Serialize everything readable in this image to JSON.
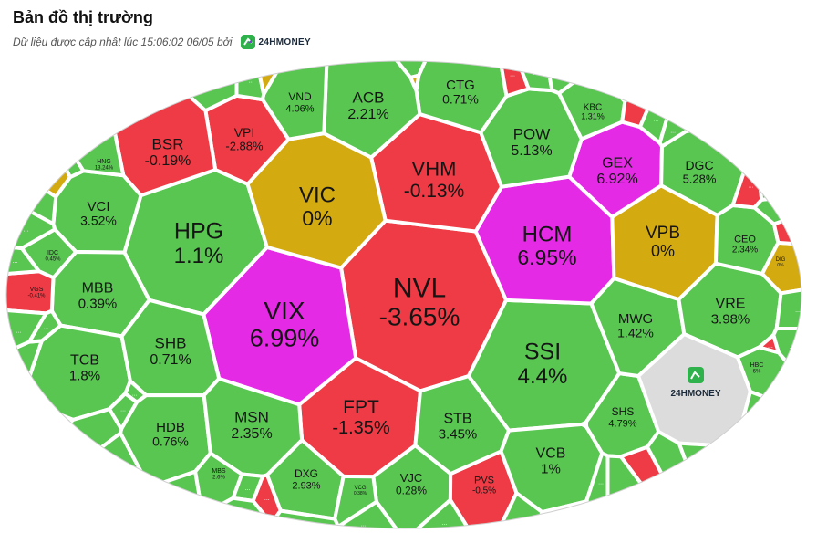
{
  "header": {
    "title": "Bản đồ thị trường",
    "update_text": "Dữ liệu được cập nhật lúc 15:06:02 06/05 bởi",
    "logo_text": "24HMONEY"
  },
  "colors": {
    "up": "#59c652",
    "down": "#ee3b45",
    "ceiling": "#e52ae6",
    "ref": "#d4aa11",
    "brand": "#dcdcdc",
    "border": "#ffffff"
  },
  "chart_data": {
    "type": "treemap",
    "cells": [
      {
        "sym": "NVL",
        "val": "-3.65%",
        "status": "down"
      },
      {
        "sym": "VIX",
        "val": "6.99%",
        "status": "ceiling"
      },
      {
        "sym": "HPG",
        "val": "1.1%",
        "status": "up"
      },
      {
        "sym": "SSI",
        "val": "4.4%",
        "status": "up"
      },
      {
        "sym": "HCM",
        "val": "6.95%",
        "status": "ceiling"
      },
      {
        "sym": "VHM",
        "val": "-0.13%",
        "status": "down"
      },
      {
        "sym": "VIC",
        "val": "0%",
        "status": "ref"
      },
      {
        "sym": "FPT",
        "val": "-1.35%",
        "status": "down"
      },
      {
        "sym": "VPB",
        "val": "0%",
        "status": "ref"
      },
      {
        "sym": "GEX",
        "val": "6.92%",
        "status": "ceiling"
      },
      {
        "sym": "POW",
        "val": "5.13%",
        "status": "up"
      },
      {
        "sym": "CTG",
        "val": "0.71%",
        "status": "up"
      },
      {
        "sym": "ACB",
        "val": "2.21%",
        "status": "up"
      },
      {
        "sym": "VND",
        "val": "4.06%",
        "status": "up"
      },
      {
        "sym": "VPI",
        "val": "-2.88%",
        "status": "down"
      },
      {
        "sym": "BSR",
        "val": "-0.19%",
        "status": "down"
      },
      {
        "sym": "VCI",
        "val": "3.52%",
        "status": "up"
      },
      {
        "sym": "MBB",
        "val": "0.39%",
        "status": "up"
      },
      {
        "sym": "TCB",
        "val": "1.8%",
        "status": "up"
      },
      {
        "sym": "SHB",
        "val": "0.71%",
        "status": "up"
      },
      {
        "sym": "HDB",
        "val": "0.76%",
        "status": "up"
      },
      {
        "sym": "MSN",
        "val": "2.35%",
        "status": "up"
      },
      {
        "sym": "DXG",
        "val": "2.93%",
        "status": "up"
      },
      {
        "sym": "VJC",
        "val": "0.28%",
        "status": "up"
      },
      {
        "sym": "PVS",
        "val": "-0.5%",
        "status": "down"
      },
      {
        "sym": "STB",
        "val": "3.45%",
        "status": "up"
      },
      {
        "sym": "VCB",
        "val": "1%",
        "status": "up"
      },
      {
        "sym": "SHS",
        "val": "4.79%",
        "status": "up"
      },
      {
        "sym": "MWG",
        "val": "1.42%",
        "status": "up"
      },
      {
        "sym": "VRE",
        "val": "3.98%",
        "status": "up"
      },
      {
        "sym": "DGC",
        "val": "5.28%",
        "status": "up"
      },
      {
        "sym": "CEO",
        "val": "2.34%",
        "status": "up"
      },
      {
        "sym": "KBC",
        "val": "1.31%",
        "status": "up"
      },
      {
        "sym": "HNG",
        "val": "13.24%",
        "status": "up"
      },
      {
        "sym": "IDC",
        "val": "0.45%",
        "status": "up"
      },
      {
        "sym": "VGS",
        "val": "-0.41%",
        "status": "down"
      },
      {
        "sym": "MBS",
        "val": "2.6%",
        "status": "up"
      },
      {
        "sym": "VCG",
        "val": "0.38%",
        "status": "up"
      },
      {
        "sym": "HBC",
        "val": "6%",
        "status": "up"
      },
      {
        "sym": "DIG",
        "val": "0%",
        "status": "ref"
      }
    ],
    "others_label": "...",
    "others": [
      {
        "status": "up"
      },
      {
        "status": "up"
      },
      {
        "status": "ref"
      },
      {
        "status": "up"
      },
      {
        "status": "ref"
      },
      {
        "status": "down"
      },
      {
        "status": "up"
      },
      {
        "status": "up"
      },
      {
        "status": "down"
      },
      {
        "status": "down"
      },
      {
        "status": "up"
      },
      {
        "status": "up"
      },
      {
        "status": "up"
      },
      {
        "status": "ref"
      },
      {
        "status": "down"
      },
      {
        "status": "up"
      },
      {
        "status": "down"
      },
      {
        "status": "up"
      },
      {
        "status": "up"
      },
      {
        "status": "down"
      },
      {
        "status": "up"
      },
      {
        "status": "up"
      },
      {
        "status": "up"
      },
      {
        "status": "up"
      },
      {
        "status": "up"
      },
      {
        "status": "down"
      },
      {
        "status": "up"
      },
      {
        "status": "up"
      },
      {
        "status": "up"
      },
      {
        "status": "up"
      },
      {
        "status": "up"
      },
      {
        "status": "down"
      },
      {
        "status": "up"
      },
      {
        "status": "up"
      },
      {
        "status": "up"
      },
      {
        "status": "up"
      },
      {
        "status": "up"
      },
      {
        "status": "up"
      },
      {
        "status": "up"
      },
      {
        "status": "up"
      },
      {
        "status": "up"
      },
      {
        "status": "up"
      },
      {
        "status": "up"
      },
      {
        "status": "ref"
      },
      {
        "status": "up"
      },
      {
        "status": "up"
      },
      {
        "status": "up"
      },
      {
        "status": "up"
      },
      {
        "status": "up"
      },
      {
        "status": "up"
      },
      {
        "status": "up"
      },
      {
        "status": "up"
      },
      {
        "status": "up"
      },
      {
        "status": "up"
      },
      {
        "status": "up"
      },
      {
        "status": "up"
      }
    ]
  }
}
